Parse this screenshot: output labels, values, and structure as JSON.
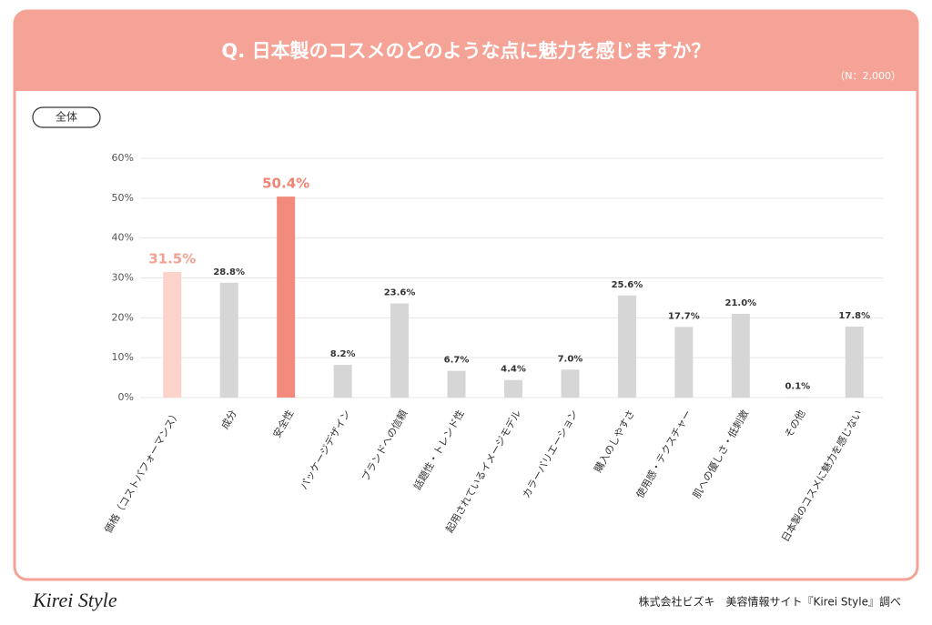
{
  "chart_data": {
    "type": "bar",
    "title": "Q. 日本製のコスメのどのような点に魅力を感じますか？",
    "subtitle": "（N：2,000）",
    "categories": [
      "価格（コストパフォーマンス）",
      "成分",
      "安全性",
      "パッケージデザイン",
      "ブランドへの信頼",
      "話題性・トレンド性",
      "起用されているイメージモデル",
      "カラーバリエーション",
      "購入のしやすさ",
      "使用感・テクスチャー",
      "肌への優しさ・低刺激",
      "その他",
      "日本製のコスメに魅力を感じない"
    ],
    "values": [
      31.5,
      28.8,
      50.4,
      8.2,
      23.6,
      6.7,
      4.4,
      7.0,
      25.6,
      17.7,
      21.0,
      0.1,
      17.8
    ],
    "value_labels": [
      "31.5%",
      "28.8%",
      "50.4%",
      "8.2%",
      "23.6%",
      "6.7%",
      "4.4%",
      "7.0%",
      "25.6%",
      "17.7%",
      "21.0%",
      "0.1%",
      "17.8%"
    ],
    "color": "#d6d6d6",
    "colors": [
      "#fbd3cb",
      "#d6d6d6",
      "#f28b7e",
      "#d6d6d6",
      "#d6d6d6",
      "#d6d6d6",
      "#d6d6d6",
      "#d6d6d6",
      "#d6d6d6",
      "#d6d6d6",
      "#d6d6d6",
      "#d6d6d6",
      "#d6d6d6"
    ],
    "label_colors": [
      "#f2a193",
      "#333333",
      "#f08474",
      "#333333",
      "#333333",
      "#333333",
      "#333333",
      "#333333",
      "#333333",
      "#333333",
      "#333333",
      "#333333",
      "#333333"
    ],
    "ylim": [
      0,
      60
    ],
    "yticks": [
      {
        "value": 0,
        "label": "0%"
      },
      {
        "value": 10,
        "label": "10%"
      },
      {
        "value": 20,
        "label": "20%"
      },
      {
        "value": 30,
        "label": "30%"
      },
      {
        "value": 40,
        "label": "40%"
      },
      {
        "value": 50,
        "label": "50%"
      },
      {
        "value": 60,
        "label": "60%"
      }
    ],
    "grid": true
  },
  "tab": "全体",
  "footer": {
    "brand": "Kirei Style",
    "credit": "株式会社ビズキ　美容情報サイト『Kirei Style』調べ"
  }
}
